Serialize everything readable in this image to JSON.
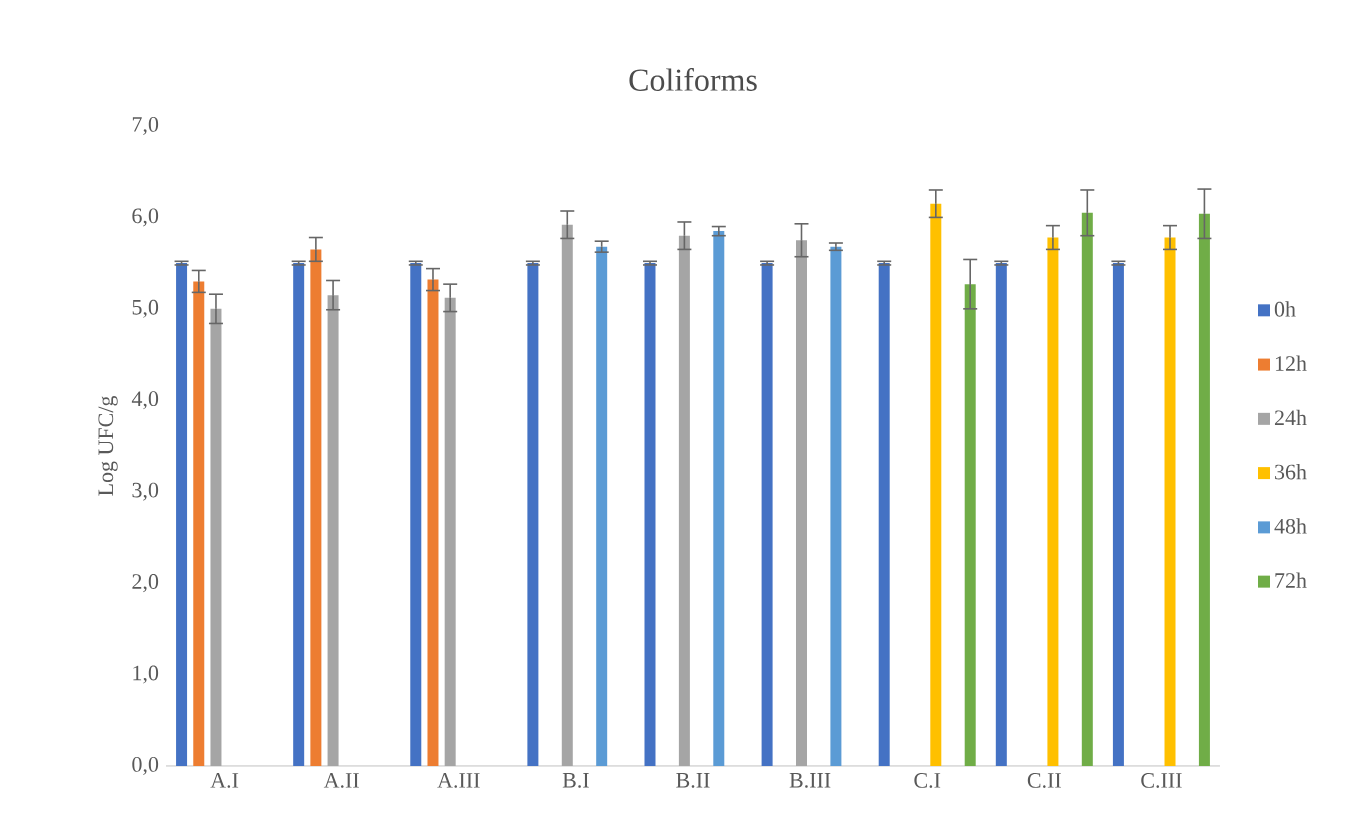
{
  "chart_data": {
    "type": "bar",
    "title": "Coliforms",
    "ylabel": "Log UFC/g",
    "categories": [
      "A.I",
      "A.II",
      "A.III",
      "B.I",
      "B.II",
      "B.III",
      "C.I",
      "C.II",
      "C.III"
    ],
    "series": [
      {
        "name": "0h",
        "color": "#4472c4",
        "values": [
          5.5,
          5.5,
          5.5,
          5.5,
          5.5,
          5.5,
          5.5,
          5.5,
          5.5
        ],
        "errors": [
          0.02,
          0.02,
          0.02,
          0.02,
          0.02,
          0.02,
          0.02,
          0.02,
          0.02
        ]
      },
      {
        "name": "12h",
        "color": "#ed7d31",
        "values": [
          5.3,
          5.65,
          5.32,
          null,
          null,
          null,
          null,
          null,
          null
        ],
        "errors": [
          0.12,
          0.13,
          0.12,
          null,
          null,
          null,
          null,
          null,
          null
        ]
      },
      {
        "name": "24h",
        "color": "#a5a5a5",
        "values": [
          5.0,
          5.15,
          5.12,
          5.92,
          5.8,
          5.75,
          null,
          null,
          null
        ],
        "errors": [
          0.16,
          0.16,
          0.15,
          0.15,
          0.15,
          0.18,
          null,
          null,
          null
        ]
      },
      {
        "name": "36h",
        "color": "#ffc000",
        "values": [
          null,
          null,
          null,
          null,
          null,
          null,
          6.15,
          5.78,
          5.78
        ],
        "errors": [
          null,
          null,
          null,
          null,
          null,
          null,
          0.15,
          0.13,
          0.13
        ]
      },
      {
        "name": "48h",
        "color": "#5b9bd5",
        "values": [
          null,
          null,
          null,
          5.68,
          5.85,
          5.68,
          null,
          null,
          null
        ],
        "errors": [
          null,
          null,
          null,
          0.06,
          0.05,
          0.04,
          null,
          null,
          null
        ]
      },
      {
        "name": "72h",
        "color": "#70ad47",
        "values": [
          null,
          null,
          null,
          null,
          null,
          null,
          5.27,
          6.05,
          6.04
        ],
        "errors": [
          null,
          null,
          null,
          null,
          null,
          null,
          0.27,
          0.25,
          0.27
        ]
      }
    ],
    "ylim": [
      0,
      7
    ],
    "yticks": [
      {
        "value": 0,
        "label": "0,0"
      },
      {
        "value": 1,
        "label": "1,0"
      },
      {
        "value": 2,
        "label": "2,0"
      },
      {
        "value": 3,
        "label": "3,0"
      },
      {
        "value": 4,
        "label": "4,0"
      },
      {
        "value": 5,
        "label": "5,0"
      },
      {
        "value": 6,
        "label": "6,0"
      },
      {
        "value": 7,
        "label": "7,0"
      }
    ],
    "legend": "right"
  }
}
